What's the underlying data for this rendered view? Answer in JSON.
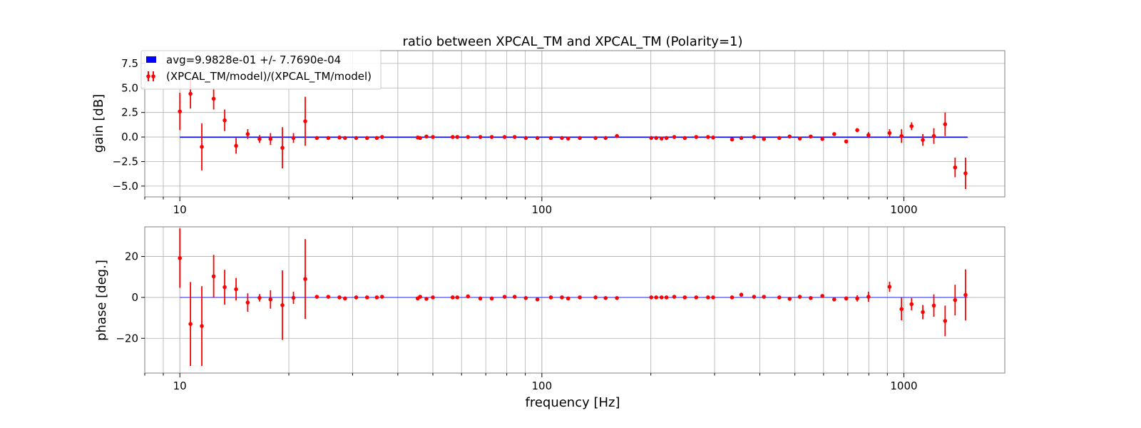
{
  "colors": {
    "avg_line": "#0000ff",
    "points": "#ff0000",
    "grid": "#b0b0b0",
    "frame": "#808080"
  },
  "figure": {
    "title": "ratio between XPCAL_TM and XPCAL_TM (Polarity=1)"
  },
  "chart_data": [
    {
      "type": "scatter",
      "title": "ratio between XPCAL_TM and XPCAL_TM (Polarity=1)",
      "xlabel": "",
      "ylabel": "gain [dB]",
      "xscale": "log",
      "xlim": [
        8,
        1900
      ],
      "ylim": [
        -6.1,
        8.8
      ],
      "xticks": [
        10,
        100,
        1000
      ],
      "xtick_labels": [
        "10",
        "100",
        "1000"
      ],
      "yticks": [
        -5.0,
        -2.5,
        0.0,
        2.5,
        5.0,
        7.5
      ],
      "ytick_labels": [
        "−5.0",
        "−2.5",
        "0.0",
        "2.5",
        "5.0",
        "7.5"
      ],
      "grid": true,
      "legend_position": "top-left",
      "legend": [
        {
          "label": "avg=9.9828e-01 +/- 7.7690e-04",
          "kind": "patch"
        },
        {
          "label": "(XPCAL_TM/model)/(XPCAL_TM/model)",
          "kind": "errorbar"
        }
      ],
      "avg_line": {
        "value": -0.015,
        "x_range": [
          10,
          1500
        ]
      },
      "series": [
        {
          "name": "(XPCAL_TM/model)/(XPCAL_TM/model)",
          "x": [
            10,
            10.7,
            11.5,
            12.4,
            13.3,
            14.3,
            15.4,
            16.6,
            17.8,
            19.2,
            20.6,
            22.2,
            23.9,
            25.7,
            27.6,
            28.6,
            30.7,
            32.9,
            35.0,
            36.2,
            45.4,
            46.1,
            48.0,
            50.0,
            56.7,
            58.4,
            62.5,
            67.6,
            72.7,
            78.9,
            84.1,
            90.3,
            97.2,
            105.9,
            113.6,
            118.2,
            127.3,
            140.7,
            150.0,
            161.2,
            200.5,
            206.9,
            214.1,
            220.9,
            232.1,
            248.2,
            266.9,
            287.7,
            297.3,
            335.2,
            355.6,
            385.5,
            410.5,
            452.8,
            483.5,
            515.8,
            553.0,
            595.4,
            642.1,
            692.9,
            743.3,
            798.3,
            913.0,
            985.0,
            1050.0,
            1128.0,
            1210.0,
            1300.0,
            1385.0,
            1480.0
          ],
          "gain_db": [
            2.6,
            4.4,
            -1.0,
            3.9,
            1.7,
            -0.9,
            0.3,
            -0.2,
            -0.2,
            -1.1,
            -0.1,
            1.6,
            -0.1,
            -0.1,
            -0.05,
            -0.1,
            -0.1,
            -0.1,
            -0.1,
            0.0,
            -0.05,
            -0.1,
            0.05,
            0.0,
            0.0,
            0.0,
            0.0,
            0.0,
            0.0,
            0.0,
            0.0,
            -0.1,
            -0.1,
            -0.1,
            -0.1,
            -0.15,
            -0.1,
            -0.1,
            -0.1,
            0.1,
            -0.1,
            -0.1,
            -0.15,
            -0.1,
            0.0,
            -0.1,
            0.0,
            0.0,
            -0.05,
            -0.25,
            -0.1,
            0.0,
            -0.2,
            -0.1,
            0.05,
            -0.15,
            0.05,
            -0.2,
            0.3,
            -0.45,
            0.7,
            0.2,
            0.4,
            0.1,
            1.1,
            -0.3,
            0.1,
            1.3,
            -3.1,
            -3.7
          ],
          "gain_err": [
            1.9,
            1.5,
            2.4,
            1.1,
            1.1,
            0.8,
            0.5,
            0.4,
            0.6,
            2.1,
            0.5,
            2.5,
            0.05,
            0.05,
            0.05,
            0.05,
            0.05,
            0.05,
            0.05,
            0.05,
            0.05,
            0.05,
            0.05,
            0.05,
            0.05,
            0.05,
            0.05,
            0.05,
            0.05,
            0.05,
            0.05,
            0.05,
            0.05,
            0.05,
            0.05,
            0.05,
            0.05,
            0.05,
            0.05,
            0.05,
            0.05,
            0.05,
            0.05,
            0.05,
            0.05,
            0.05,
            0.05,
            0.05,
            0.05,
            0.05,
            0.1,
            0.05,
            0.1,
            0.05,
            0.05,
            0.1,
            0.05,
            0.05,
            0.1,
            0.15,
            0.2,
            0.3,
            0.4,
            0.7,
            0.4,
            0.6,
            0.8,
            1.2,
            1.0,
            1.6
          ]
        }
      ]
    },
    {
      "type": "scatter",
      "title": "",
      "xlabel": "frequency [Hz]",
      "ylabel": "phase [deg.]",
      "xscale": "log",
      "xlim": [
        8,
        1900
      ],
      "ylim": [
        -37,
        34.5
      ],
      "xticks": [
        10,
        100,
        1000
      ],
      "xtick_labels": [
        "10",
        "100",
        "1000"
      ],
      "yticks": [
        -20,
        0,
        20
      ],
      "ytick_labels": [
        "−20",
        "0",
        "20"
      ],
      "grid": true,
      "avg_line": {
        "value": 0,
        "x_range": [
          10,
          1500
        ]
      },
      "series": [
        {
          "name": "(XPCAL_TM/model)/(XPCAL_TM/model)",
          "x": [
            10,
            10.7,
            11.5,
            12.4,
            13.3,
            14.3,
            15.4,
            16.6,
            17.8,
            19.2,
            20.6,
            22.2,
            23.9,
            25.7,
            27.6,
            28.6,
            30.7,
            32.9,
            35.0,
            36.2,
            45.4,
            46.1,
            48.0,
            50.0,
            56.7,
            58.4,
            62.5,
            67.6,
            72.7,
            78.9,
            84.1,
            90.3,
            97.2,
            105.9,
            113.6,
            118.2,
            127.3,
            140.7,
            150.0,
            161.2,
            200.5,
            206.9,
            214.1,
            220.9,
            232.1,
            248.2,
            266.9,
            287.7,
            297.3,
            335.2,
            355.6,
            385.5,
            410.5,
            452.8,
            483.5,
            515.8,
            553.0,
            595.4,
            642.1,
            692.9,
            743.3,
            798.3,
            913.0,
            985.0,
            1050.0,
            1128.0,
            1210.0,
            1300.0,
            1385.0,
            1480.0
          ],
          "phase_deg": [
            19.2,
            -13.0,
            -14.0,
            10.3,
            5.0,
            4.0,
            -2.5,
            -0.2,
            -1.0,
            -3.8,
            -0.2,
            9.0,
            0.3,
            0.3,
            0.0,
            -0.5,
            0.0,
            0.0,
            0.0,
            0.3,
            -0.5,
            0.3,
            -0.7,
            0.0,
            0.0,
            0.0,
            0.5,
            -0.5,
            -0.5,
            0.3,
            0.3,
            -0.3,
            -1.0,
            0.0,
            0.0,
            -0.5,
            0.0,
            0.0,
            -0.3,
            -0.3,
            0.0,
            0.0,
            0.0,
            0.0,
            0.3,
            0.0,
            0.0,
            0.0,
            0.0,
            0.0,
            1.3,
            0.3,
            0.3,
            0.0,
            -0.7,
            0.3,
            -0.3,
            0.7,
            -1.0,
            -0.5,
            -0.5,
            0.3,
            5.2,
            -5.7,
            -3.3,
            -7.2,
            -4.0,
            -11.5,
            -1.3,
            1.2
          ],
          "phase_err": [
            14.5,
            20.5,
            19.5,
            10.5,
            8.5,
            5.5,
            4.5,
            1.8,
            4.5,
            17.0,
            3.0,
            19.5,
            0.5,
            0.5,
            0.8,
            0.5,
            0.5,
            0.5,
            0.5,
            0.5,
            0.5,
            0.5,
            0.5,
            0.5,
            0.5,
            0.5,
            0.5,
            0.5,
            0.5,
            0.5,
            0.5,
            0.5,
            0.5,
            0.5,
            0.5,
            0.5,
            0.5,
            0.5,
            0.5,
            0.5,
            0.5,
            0.5,
            0.5,
            0.5,
            0.5,
            0.5,
            0.5,
            0.5,
            0.5,
            0.5,
            1.0,
            0.5,
            0.5,
            0.5,
            0.8,
            0.5,
            0.5,
            0.8,
            0.5,
            1.0,
            1.5,
            2.5,
            2.5,
            5.5,
            3.0,
            3.5,
            5.5,
            7.5,
            7.5,
            12.5
          ]
        }
      ]
    }
  ]
}
